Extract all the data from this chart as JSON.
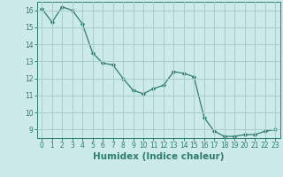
{
  "x": [
    0,
    1,
    2,
    3,
    4,
    5,
    6,
    7,
    8,
    9,
    10,
    11,
    12,
    13,
    14,
    15,
    16,
    17,
    18,
    19,
    20,
    21,
    22,
    23
  ],
  "y": [
    16.1,
    15.3,
    16.2,
    16.0,
    15.2,
    13.5,
    12.9,
    12.8,
    12.0,
    11.3,
    11.1,
    11.4,
    11.6,
    12.4,
    12.3,
    12.1,
    9.7,
    8.9,
    8.6,
    8.6,
    8.7,
    8.7,
    8.9,
    9.0
  ],
  "line_color": "#2e7d6e",
  "marker": "D",
  "marker_size": 2.2,
  "bg_color": "#cceae7",
  "grid_color": "#aacccc",
  "xlabel": "Humidex (Indice chaleur)",
  "ylim": [
    8.5,
    16.5
  ],
  "xlim": [
    -0.5,
    23.5
  ],
  "yticks": [
    9,
    10,
    11,
    12,
    13,
    14,
    15,
    16
  ],
  "xticks": [
    0,
    1,
    2,
    3,
    4,
    5,
    6,
    7,
    8,
    9,
    10,
    11,
    12,
    13,
    14,
    15,
    16,
    17,
    18,
    19,
    20,
    21,
    22,
    23
  ],
  "tick_fontsize": 5.5,
  "xlabel_fontsize": 7.5
}
